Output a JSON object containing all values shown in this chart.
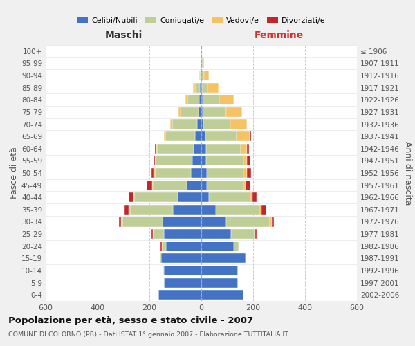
{
  "age_groups": [
    "0-4",
    "5-9",
    "10-14",
    "15-19",
    "20-24",
    "25-29",
    "30-34",
    "35-39",
    "40-44",
    "45-49",
    "50-54",
    "55-59",
    "60-64",
    "65-69",
    "70-74",
    "75-79",
    "80-84",
    "85-89",
    "90-94",
    "95-99",
    "100+"
  ],
  "birth_years": [
    "2002-2006",
    "1997-2001",
    "1992-1996",
    "1987-1991",
    "1982-1986",
    "1977-1981",
    "1972-1976",
    "1967-1971",
    "1962-1966",
    "1957-1961",
    "1952-1956",
    "1947-1951",
    "1942-1946",
    "1937-1941",
    "1932-1936",
    "1927-1931",
    "1922-1926",
    "1917-1921",
    "1912-1916",
    "1907-1911",
    "≤ 1906"
  ],
  "maschi": {
    "celibi": [
      165,
      145,
      145,
      155,
      135,
      145,
      150,
      110,
      90,
      55,
      40,
      35,
      30,
      25,
      15,
      10,
      8,
      5,
      2,
      1,
      0
    ],
    "coniugati": [
      0,
      0,
      1,
      5,
      15,
      40,
      155,
      165,
      168,
      130,
      140,
      140,
      140,
      115,
      98,
      70,
      45,
      18,
      4,
      2,
      0
    ],
    "vedovi": [
      0,
      0,
      0,
      0,
      3,
      3,
      4,
      4,
      4,
      4,
      4,
      4,
      4,
      4,
      6,
      8,
      8,
      8,
      3,
      1,
      0
    ],
    "divorziati": [
      0,
      0,
      0,
      0,
      4,
      4,
      8,
      18,
      18,
      22,
      8,
      5,
      5,
      0,
      0,
      0,
      0,
      0,
      0,
      0,
      0
    ]
  },
  "femmine": {
    "nubili": [
      162,
      140,
      140,
      170,
      125,
      115,
      95,
      55,
      28,
      22,
      22,
      18,
      18,
      15,
      8,
      6,
      4,
      3,
      1,
      1,
      0
    ],
    "coniugate": [
      0,
      0,
      1,
      4,
      18,
      90,
      170,
      170,
      160,
      140,
      140,
      145,
      135,
      120,
      105,
      90,
      65,
      22,
      10,
      3,
      0
    ],
    "vedove": [
      0,
      0,
      0,
      0,
      4,
      4,
      8,
      8,
      8,
      8,
      13,
      13,
      22,
      52,
      62,
      62,
      56,
      42,
      18,
      7,
      2
    ],
    "divorziate": [
      0,
      0,
      0,
      0,
      0,
      4,
      8,
      18,
      18,
      18,
      18,
      13,
      8,
      4,
      0,
      0,
      0,
      0,
      0,
      0,
      0
    ]
  },
  "colors": {
    "celibi_nubili": "#4472C4",
    "coniugati": "#BFCD96",
    "vedovi": "#F5C264",
    "divorziati": "#C0272D"
  },
  "title": "Popolazione per età, sesso e stato civile - 2007",
  "subtitle": "COMUNE DI COLORNO (PR) - Dati ISTAT 1° gennaio 2007 - Elaborazione TUTTITALIA.IT",
  "ylabel_left": "Fasce di età",
  "ylabel_right": "Anni di nascita",
  "maschi_label": "Maschi",
  "femmine_label": "Femmine",
  "legend_labels": [
    "Celibi/Nubili",
    "Coniugati/e",
    "Vedovi/e",
    "Divorziati/e"
  ],
  "xlim": 600,
  "bg_color": "#f0f0f0",
  "plot_bg": "#ffffff"
}
